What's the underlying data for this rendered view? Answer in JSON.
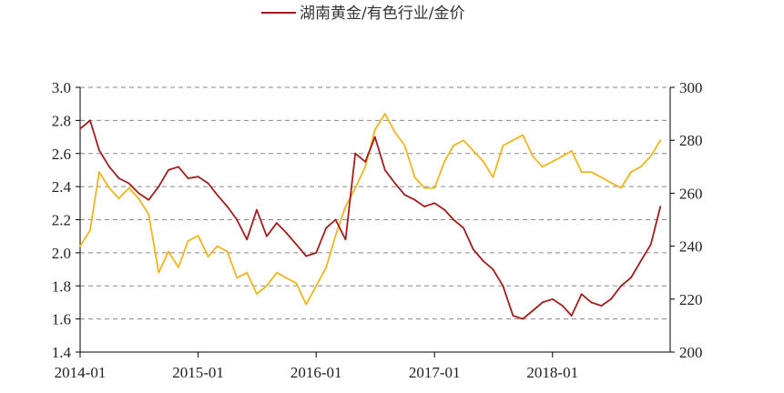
{
  "chart_data": {
    "type": "line",
    "legend": {
      "placement": "top-center",
      "entries": [
        {
          "label": "湖南黄金/有色行业/金价",
          "color": "#a51c1c"
        }
      ]
    },
    "x_ticks": [
      "2014-01",
      "2015-01",
      "2016-01",
      "2017-01",
      "2018-01"
    ],
    "x_range": [
      "2014-01-01",
      "2018-12-31"
    ],
    "y_left": {
      "min": 1.4,
      "max": 3.0,
      "ticks": [
        "1.4",
        "1.6",
        "1.8",
        "2.0",
        "2.2",
        "2.4",
        "2.6",
        "2.8",
        "3.0"
      ]
    },
    "y_right": {
      "min": 200,
      "max": 300,
      "ticks": [
        "200",
        "220",
        "240",
        "260",
        "280",
        "300"
      ]
    },
    "grid": "horizontal-dashed",
    "series": [
      {
        "axis": "left",
        "color": "#a51c1c",
        "x": [
          "2014-01",
          "2014-02",
          "2014-03",
          "2014-04",
          "2014-05",
          "2014-06",
          "2014-07",
          "2014-08",
          "2014-09",
          "2014-10",
          "2014-11",
          "2014-12",
          "2015-01",
          "2015-02",
          "2015-03",
          "2015-04",
          "2015-05",
          "2015-06",
          "2015-07",
          "2015-08",
          "2015-09",
          "2015-10",
          "2015-11",
          "2015-12",
          "2016-01",
          "2016-02",
          "2016-03",
          "2016-04",
          "2016-05",
          "2016-06",
          "2016-07",
          "2016-08",
          "2016-09",
          "2016-10",
          "2016-11",
          "2016-12",
          "2017-01",
          "2017-02",
          "2017-03",
          "2017-04",
          "2017-05",
          "2017-06",
          "2017-07",
          "2017-08",
          "2017-09",
          "2017-10",
          "2017-11",
          "2017-12",
          "2018-01",
          "2018-02",
          "2018-03",
          "2018-04",
          "2018-05",
          "2018-06",
          "2018-07",
          "2018-08",
          "2018-09",
          "2018-10",
          "2018-11",
          "2018-12"
        ],
        "values": [
          2.75,
          2.8,
          2.62,
          2.52,
          2.45,
          2.42,
          2.36,
          2.32,
          2.4,
          2.5,
          2.52,
          2.45,
          2.46,
          2.42,
          2.35,
          2.28,
          2.2,
          2.08,
          2.26,
          2.1,
          2.18,
          2.12,
          2.05,
          1.98,
          2.0,
          2.15,
          2.2,
          2.08,
          2.6,
          2.55,
          2.7,
          2.5,
          2.42,
          2.35,
          2.32,
          2.28,
          2.3,
          2.26,
          2.2,
          2.15,
          2.02,
          1.95,
          1.9,
          1.8,
          1.62,
          1.6,
          1.65,
          1.7,
          1.72,
          1.68,
          1.62,
          1.75,
          1.7,
          1.68,
          1.72,
          1.8,
          1.85,
          1.95,
          2.05,
          2.28
        ]
      },
      {
        "axis": "right",
        "color": "#f2b51c",
        "x": [
          "2014-01",
          "2014-02",
          "2014-03",
          "2014-04",
          "2014-05",
          "2014-06",
          "2014-07",
          "2014-08",
          "2014-09",
          "2014-10",
          "2014-11",
          "2014-12",
          "2015-01",
          "2015-02",
          "2015-03",
          "2015-04",
          "2015-05",
          "2015-06",
          "2015-07",
          "2015-08",
          "2015-09",
          "2015-10",
          "2015-11",
          "2015-12",
          "2016-01",
          "2016-02",
          "2016-03",
          "2016-04",
          "2016-05",
          "2016-06",
          "2016-07",
          "2016-08",
          "2016-09",
          "2016-10",
          "2016-11",
          "2016-12",
          "2017-01",
          "2017-02",
          "2017-03",
          "2017-04",
          "2017-05",
          "2017-06",
          "2017-07",
          "2017-08",
          "2017-09",
          "2017-10",
          "2017-11",
          "2017-12",
          "2018-01",
          "2018-02",
          "2018-03",
          "2018-04",
          "2018-05",
          "2018-06",
          "2018-07",
          "2018-08",
          "2018-09",
          "2018-10",
          "2018-11",
          "2018-12"
        ],
        "values": [
          240,
          246,
          268,
          262,
          258,
          262,
          258,
          252,
          230,
          238,
          232,
          242,
          244,
          236,
          240,
          238,
          228,
          230,
          222,
          225,
          230,
          228,
          226,
          218,
          225,
          232,
          244,
          255,
          262,
          270,
          284,
          290,
          283,
          278,
          266,
          262,
          262,
          272,
          278,
          280,
          276,
          272,
          266,
          278,
          280,
          282,
          274,
          270,
          272,
          274,
          276,
          268,
          268,
          266,
          264,
          262,
          268,
          270,
          274,
          280
        ]
      }
    ]
  }
}
